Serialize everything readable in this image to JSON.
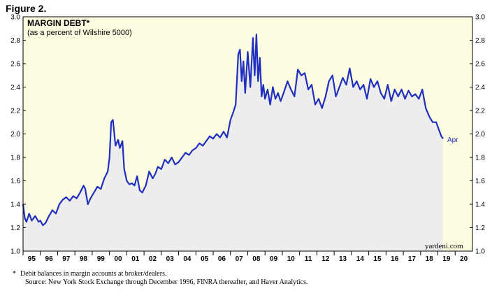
{
  "figure_label": "Figure 2.",
  "colors": {
    "plot_bg": "#fdfbe0",
    "line": "#1f2fbf",
    "area": "#ededed",
    "frame": "#000000"
  },
  "footnote": {
    "marker": "*",
    "line1": "Debit balances in margin accounts at broker/dealers.",
    "line2": "Source: New York Stock Exchange through December 1996, FINRA thereafter, and Haver Analytics."
  },
  "chart_data": {
    "type": "line",
    "title": "MARGIN DEBT*",
    "subtitle": "(as a percent of Wilshire 5000)",
    "credit": "yardeni.com",
    "end_label": "Apr",
    "ylim": [
      1.0,
      3.0
    ],
    "xlim": [
      1995.0,
      2021.0
    ],
    "y_ticks": [
      "1.0",
      "1.2",
      "1.4",
      "1.6",
      "1.8",
      "2.0",
      "2.2",
      "2.4",
      "2.6",
      "2.8",
      "3.0"
    ],
    "x_tick_labels": [
      "95",
      "96",
      "97",
      "98",
      "99",
      "00",
      "01",
      "02",
      "03",
      "04",
      "05",
      "06",
      "07",
      "08",
      "09",
      "10",
      "11",
      "12",
      "13",
      "14",
      "15",
      "16",
      "17",
      "18",
      "19",
      "20"
    ],
    "series": [
      {
        "name": "Margin Debt (% of Wilshire 5000)",
        "x": [
          1995.0,
          1995.1,
          1995.2,
          1995.35,
          1995.5,
          1995.7,
          1995.9,
          1996.0,
          1996.15,
          1996.3,
          1996.5,
          1996.7,
          1996.9,
          1997.1,
          1997.3,
          1997.5,
          1997.7,
          1997.9,
          1998.1,
          1998.3,
          1998.5,
          1998.6,
          1998.75,
          1998.9,
          1999.1,
          1999.3,
          1999.5,
          1999.7,
          1999.9,
          2000.0,
          2000.1,
          2000.2,
          2000.35,
          2000.5,
          2000.6,
          2000.75,
          2000.85,
          2001.0,
          2001.15,
          2001.3,
          2001.45,
          2001.6,
          2001.75,
          2001.9,
          2002.1,
          2002.3,
          2002.5,
          2002.65,
          2002.8,
          2003.0,
          2003.2,
          2003.4,
          2003.6,
          2003.8,
          2004.0,
          2004.2,
          2004.4,
          2004.6,
          2004.8,
          2005.0,
          2005.2,
          2005.4,
          2005.6,
          2005.8,
          2006.0,
          2006.2,
          2006.4,
          2006.6,
          2006.8,
          2007.0,
          2007.15,
          2007.3,
          2007.45,
          2007.55,
          2007.65,
          2007.75,
          2007.85,
          2008.0,
          2008.15,
          2008.3,
          2008.4,
          2008.5,
          2008.6,
          2008.7,
          2008.8,
          2008.9,
          2009.0,
          2009.15,
          2009.3,
          2009.45,
          2009.6,
          2009.75,
          2009.9,
          2010.1,
          2010.3,
          2010.5,
          2010.7,
          2010.9,
          2011.1,
          2011.3,
          2011.5,
          2011.7,
          2011.9,
          2012.1,
          2012.3,
          2012.5,
          2012.7,
          2012.9,
          2013.1,
          2013.3,
          2013.5,
          2013.7,
          2013.9,
          2014.1,
          2014.3,
          2014.5,
          2014.7,
          2014.9,
          2015.1,
          2015.3,
          2015.5,
          2015.7,
          2015.9,
          2016.1,
          2016.3,
          2016.5,
          2016.7,
          2016.9,
          2017.1,
          2017.3,
          2017.5,
          2017.7,
          2017.9,
          2018.1,
          2018.3,
          2018.5,
          2018.7,
          2018.9,
          2019.1,
          2019.2,
          2019.3
        ],
        "values": [
          1.4,
          1.28,
          1.25,
          1.32,
          1.26,
          1.3,
          1.25,
          1.26,
          1.22,
          1.24,
          1.3,
          1.35,
          1.32,
          1.4,
          1.44,
          1.46,
          1.43,
          1.47,
          1.45,
          1.5,
          1.56,
          1.53,
          1.4,
          1.45,
          1.5,
          1.55,
          1.53,
          1.62,
          1.68,
          1.8,
          2.1,
          2.12,
          1.9,
          1.95,
          1.88,
          1.94,
          1.7,
          1.6,
          1.57,
          1.58,
          1.56,
          1.64,
          1.52,
          1.5,
          1.56,
          1.68,
          1.62,
          1.66,
          1.72,
          1.7,
          1.78,
          1.75,
          1.8,
          1.74,
          1.76,
          1.8,
          1.84,
          1.82,
          1.86,
          1.88,
          1.92,
          1.9,
          1.94,
          1.98,
          1.96,
          2.0,
          1.97,
          2.02,
          1.97,
          2.12,
          2.18,
          2.25,
          2.68,
          2.72,
          2.45,
          2.62,
          2.35,
          2.7,
          2.4,
          2.82,
          2.5,
          2.85,
          2.45,
          2.65,
          2.32,
          2.42,
          2.3,
          2.38,
          2.25,
          2.4,
          2.3,
          2.35,
          2.28,
          2.36,
          2.45,
          2.38,
          2.32,
          2.55,
          2.5,
          2.52,
          2.38,
          2.42,
          2.25,
          2.3,
          2.22,
          2.32,
          2.45,
          2.5,
          2.32,
          2.4,
          2.48,
          2.42,
          2.56,
          2.4,
          2.45,
          2.38,
          2.42,
          2.3,
          2.47,
          2.4,
          2.45,
          2.35,
          2.3,
          2.42,
          2.28,
          2.38,
          2.32,
          2.38,
          2.3,
          2.37,
          2.32,
          2.34,
          2.3,
          2.38,
          2.22,
          2.15,
          2.1,
          2.1,
          2.02,
          1.98,
          1.96
        ]
      }
    ]
  }
}
